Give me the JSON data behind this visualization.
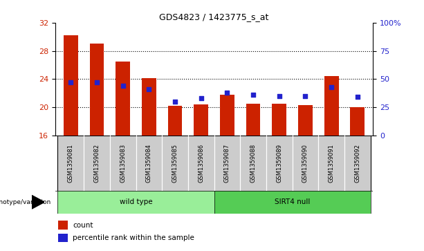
{
  "title": "GDS4823 / 1423775_s_at",
  "samples": [
    "GSM1359081",
    "GSM1359082",
    "GSM1359083",
    "GSM1359084",
    "GSM1359085",
    "GSM1359086",
    "GSM1359087",
    "GSM1359088",
    "GSM1359089",
    "GSM1359090",
    "GSM1359091",
    "GSM1359092"
  ],
  "counts": [
    30.2,
    29.0,
    26.5,
    24.1,
    20.2,
    20.4,
    21.8,
    20.5,
    20.5,
    20.3,
    24.4,
    20.0
  ],
  "percentiles": [
    47,
    47,
    44,
    41,
    30,
    33,
    38,
    36,
    35,
    35,
    43,
    34
  ],
  "ymin": 16,
  "ymax": 32,
  "yticks_left": [
    16,
    20,
    24,
    28,
    32
  ],
  "yticks_right": [
    0,
    25,
    50,
    75,
    100
  ],
  "bar_color": "#CC2200",
  "dot_color": "#2222CC",
  "bg_color": "#FFFFFF",
  "groups": [
    {
      "label": "wild type",
      "start": 0,
      "end": 5,
      "color": "#99EE99"
    },
    {
      "label": "SIRT4 null",
      "start": 6,
      "end": 11,
      "color": "#55CC55"
    }
  ],
  "group_label": "genotype/variation",
  "legend_count": "count",
  "legend_pct": "percentile rank within the sample",
  "bar_width": 0.55
}
